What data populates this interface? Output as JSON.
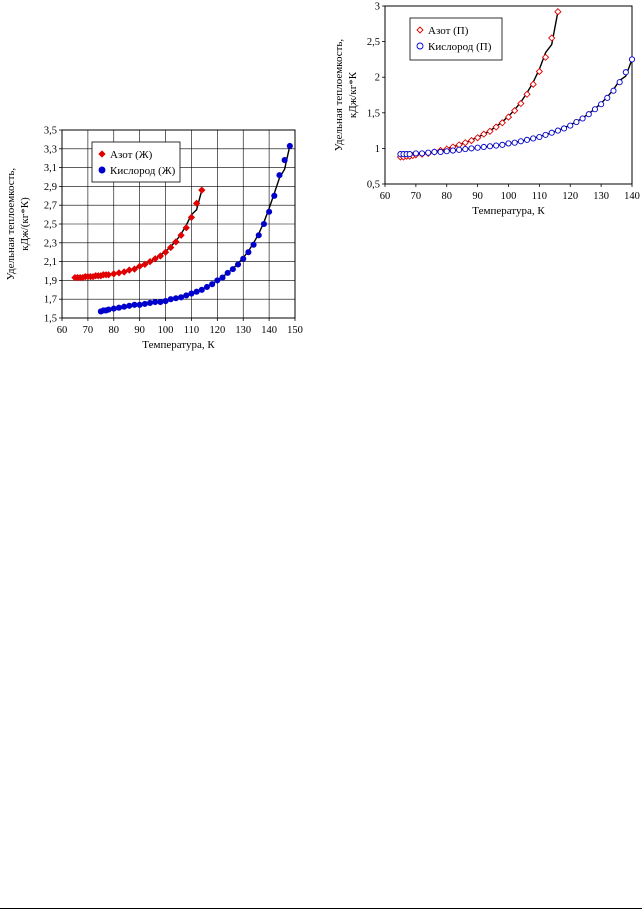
{
  "chart_data": [
    {
      "type": "scatter",
      "xlabel": "Температура, К",
      "ylabel": [
        "Удельная теплоемкость,",
        "кДж/(кг*К)"
      ],
      "xlim": [
        60,
        150
      ],
      "ylim": [
        1.5,
        3.5
      ],
      "x_ticks": [
        60,
        70,
        80,
        90,
        100,
        110,
        120,
        130,
        140,
        150
      ],
      "y_ticks": [
        "1,5",
        "1,7",
        "1,9",
        "2,1",
        "2,3",
        "2,5",
        "2,7",
        "2,9",
        "3,1",
        "3,3",
        "3,5"
      ],
      "grid": true,
      "legend_position": "top-left",
      "series": [
        {
          "name": "Азот (Ж)",
          "color": "#e00000",
          "marker": "diamond-filled",
          "x": [
            65,
            66,
            67,
            68,
            69,
            70,
            71,
            72,
            73,
            74,
            75,
            76,
            77,
            78,
            80,
            82,
            84,
            86,
            88,
            90,
            92,
            94,
            96,
            98,
            100,
            102,
            104,
            106,
            108,
            110,
            112,
            114
          ],
          "y": [
            1.93,
            1.93,
            1.93,
            1.93,
            1.94,
            1.94,
            1.94,
            1.94,
            1.95,
            1.95,
            1.95,
            1.96,
            1.96,
            1.96,
            1.97,
            1.98,
            1.99,
            2.01,
            2.02,
            2.05,
            2.07,
            2.1,
            2.13,
            2.16,
            2.2,
            2.25,
            2.31,
            2.38,
            2.46,
            2.57,
            2.72,
            2.86
          ]
        },
        {
          "name": "Кислород (Ж)",
          "color": "#0000cc",
          "marker": "circle-filled",
          "x": [
            75,
            76,
            77,
            78,
            80,
            82,
            84,
            86,
            88,
            90,
            92,
            94,
            96,
            98,
            100,
            102,
            104,
            106,
            108,
            110,
            112,
            114,
            116,
            118,
            120,
            122,
            124,
            126,
            128,
            130,
            132,
            134,
            136,
            138,
            140,
            142,
            144,
            146,
            148
          ],
          "y": [
            1.57,
            1.58,
            1.58,
            1.59,
            1.6,
            1.61,
            1.62,
            1.63,
            1.64,
            1.64,
            1.65,
            1.66,
            1.67,
            1.67,
            1.68,
            1.7,
            1.71,
            1.72,
            1.74,
            1.76,
            1.78,
            1.8,
            1.83,
            1.86,
            1.9,
            1.93,
            1.98,
            2.02,
            2.07,
            2.13,
            2.2,
            2.28,
            2.38,
            2.5,
            2.63,
            2.8,
            3.02,
            3.18,
            3.33
          ]
        }
      ],
      "fit_color": "#000000"
    },
    {
      "type": "scatter",
      "xlabel": "Температура, К",
      "ylabel": [
        "Удельная теплоемкость,",
        "кДж/кг*К"
      ],
      "xlim": [
        60,
        140
      ],
      "ylim": [
        0.5,
        3
      ],
      "x_ticks": [
        60,
        70,
        80,
        90,
        100,
        110,
        120,
        130,
        140
      ],
      "y_ticks": [
        "0,5",
        "1",
        "1,5",
        "2",
        "2,5",
        "3"
      ],
      "grid": false,
      "legend_position": "top-left",
      "series": [
        {
          "name": "Азот (П)",
          "color": "#e00000",
          "marker": "diamond-open",
          "x": [
            65,
            66,
            67,
            68,
            69,
            70,
            72,
            74,
            76,
            78,
            80,
            82,
            84,
            86,
            88,
            90,
            92,
            94,
            96,
            98,
            100,
            102,
            104,
            106,
            108,
            110,
            112,
            114,
            116
          ],
          "y": [
            0.88,
            0.88,
            0.89,
            0.89,
            0.9,
            0.91,
            0.92,
            0.93,
            0.95,
            0.97,
            0.99,
            1.02,
            1.05,
            1.08,
            1.11,
            1.15,
            1.2,
            1.24,
            1.3,
            1.36,
            1.44,
            1.53,
            1.63,
            1.76,
            1.9,
            2.08,
            2.28,
            2.55,
            2.92
          ]
        },
        {
          "name": "Кислород (П)",
          "color": "#0000cc",
          "marker": "circle-open",
          "x": [
            65,
            66,
            67,
            68,
            70,
            72,
            74,
            76,
            78,
            80,
            82,
            84,
            86,
            88,
            90,
            92,
            94,
            96,
            98,
            100,
            102,
            104,
            106,
            108,
            110,
            112,
            114,
            116,
            118,
            120,
            122,
            124,
            126,
            128,
            130,
            132,
            134,
            136,
            138,
            140
          ],
          "y": [
            0.92,
            0.92,
            0.92,
            0.92,
            0.93,
            0.93,
            0.94,
            0.95,
            0.95,
            0.96,
            0.97,
            0.98,
            0.99,
            1.0,
            1.01,
            1.02,
            1.03,
            1.04,
            1.05,
            1.07,
            1.08,
            1.1,
            1.12,
            1.14,
            1.16,
            1.19,
            1.22,
            1.25,
            1.28,
            1.32,
            1.37,
            1.42,
            1.48,
            1.55,
            1.62,
            1.71,
            1.81,
            1.93,
            2.07,
            2.25
          ]
        }
      ],
      "fit_color": "#000000"
    }
  ]
}
